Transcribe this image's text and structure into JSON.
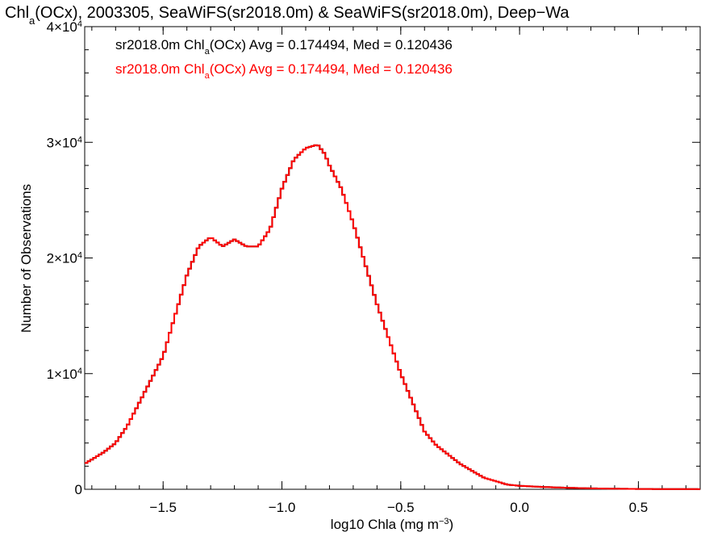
{
  "chart_data": {
    "type": "line",
    "title": "Chl",
    "title_sub": "a",
    "title_rest": "(OCx), 2003305, SeaWiFS(sr2018.0m) & SeaWiFS(sr2018.0m), Deep−Wa",
    "xlabel": "log10 Chla (mg m",
    "xlabel_sup": "−3",
    "xlabel_end": ")",
    "ylabel": "Number of Observations",
    "xlim": [
      -1.83,
      0.76
    ],
    "ylim": [
      0,
      40000
    ],
    "x_ticks": [
      {
        "v": -1.5,
        "label": "−1.5"
      },
      {
        "v": -1.0,
        "label": "−1.0"
      },
      {
        "v": -0.5,
        "label": "−0.5"
      },
      {
        "v": 0.0,
        "label": "0.0"
      },
      {
        "v": 0.5,
        "label": "0.5"
      }
    ],
    "y_ticks": [
      {
        "v": 0,
        "base": "0",
        "exp": ""
      },
      {
        "v": 10000,
        "base": "1×10",
        "exp": "4"
      },
      {
        "v": 20000,
        "base": "2×10",
        "exp": "4"
      },
      {
        "v": 30000,
        "base": "3×10",
        "exp": "4"
      },
      {
        "v": 40000,
        "base": "4×10",
        "exp": "4"
      }
    ],
    "legend": [
      {
        "pre": "sr2018.0m Chl",
        "sub": "a",
        "post": "(OCx) Avg = 0.174494, Med = 0.120436",
        "color": "#000000"
      },
      {
        "pre": "sr2018.0m Chl",
        "sub": "a",
        "post": "(OCx) Avg = 0.174494, Med = 0.120436",
        "color": "#ff0000"
      }
    ],
    "legend_placement": "top-left",
    "series": [
      {
        "color": "#000000",
        "step": true,
        "x": [
          -1.83,
          -1.75,
          -1.7,
          -1.65,
          -1.6,
          -1.55,
          -1.5,
          -1.45,
          -1.4,
          -1.35,
          -1.3,
          -1.25,
          -1.2,
          -1.15,
          -1.1,
          -1.05,
          -1.0,
          -0.95,
          -0.9,
          -0.85,
          -0.82,
          -0.8,
          -0.75,
          -0.7,
          -0.65,
          -0.6,
          -0.55,
          -0.5,
          -0.45,
          -0.4,
          -0.35,
          -0.3,
          -0.25,
          -0.2,
          -0.15,
          -0.1,
          -0.05,
          0.0,
          0.05,
          0.1,
          0.2,
          0.3,
          0.4,
          0.5,
          0.6,
          0.76
        ],
        "y": [
          2200,
          3200,
          4000,
          5500,
          7500,
          9500,
          11500,
          15000,
          18500,
          21000,
          21800,
          21000,
          21600,
          21000,
          21000,
          22500,
          26000,
          28500,
          29500,
          29800,
          29000,
          28000,
          26000,
          23000,
          19500,
          16000,
          13000,
          10000,
          7500,
          5000,
          3800,
          3000,
          2200,
          1600,
          1000,
          700,
          400,
          300,
          250,
          200,
          130,
          80,
          50,
          30,
          20,
          10
        ]
      },
      {
        "color": "#ff0000",
        "step": true,
        "x": [
          -1.83,
          -1.75,
          -1.7,
          -1.65,
          -1.6,
          -1.55,
          -1.5,
          -1.45,
          -1.4,
          -1.35,
          -1.3,
          -1.25,
          -1.2,
          -1.15,
          -1.1,
          -1.05,
          -1.0,
          -0.95,
          -0.9,
          -0.85,
          -0.82,
          -0.8,
          -0.75,
          -0.7,
          -0.65,
          -0.6,
          -0.55,
          -0.5,
          -0.45,
          -0.4,
          -0.35,
          -0.3,
          -0.25,
          -0.2,
          -0.15,
          -0.1,
          -0.05,
          0.0,
          0.05,
          0.1,
          0.2,
          0.3,
          0.4,
          0.5,
          0.6,
          0.76
        ],
        "y": [
          2200,
          3200,
          4000,
          5500,
          7500,
          9500,
          11500,
          15000,
          18500,
          21000,
          21800,
          21000,
          21600,
          21000,
          21000,
          22500,
          26000,
          28500,
          29500,
          29800,
          29000,
          28000,
          26000,
          23000,
          19500,
          16000,
          13000,
          10000,
          7500,
          5000,
          3800,
          3000,
          2200,
          1600,
          1000,
          700,
          400,
          300,
          250,
          200,
          130,
          80,
          50,
          30,
          20,
          10
        ]
      }
    ]
  }
}
